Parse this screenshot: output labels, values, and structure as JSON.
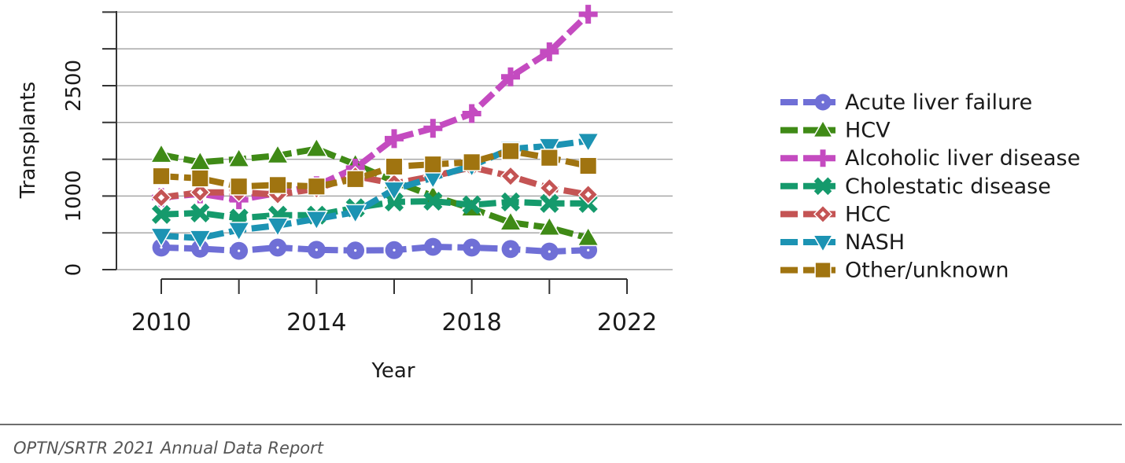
{
  "chart_data": {
    "type": "line",
    "xlabel": "Year",
    "ylabel": "Transplants",
    "xlim": [
      2010,
      2022
    ],
    "ylim": [
      0,
      3500
    ],
    "x_ticks": [
      2010,
      2014,
      2018,
      2022
    ],
    "y_ticks": [
      0,
      1000,
      2500
    ],
    "grid": true,
    "legend_position": "right",
    "x": [
      2010,
      2011,
      2012,
      2013,
      2014,
      2015,
      2016,
      2017,
      2018,
      2019,
      2020,
      2021
    ],
    "series": [
      {
        "name": "Acute liver failure",
        "color": "#6f6fd6",
        "marker": "circle",
        "values": [
          300,
          285,
          255,
          300,
          270,
          260,
          265,
          310,
          300,
          280,
          245,
          265
        ]
      },
      {
        "name": "HCV",
        "color": "#3f8a16",
        "marker": "triangle",
        "values": [
          1560,
          1460,
          1500,
          1550,
          1640,
          1430,
          1200,
          1000,
          830,
          640,
          570,
          430
        ]
      },
      {
        "name": "Alcoholic liver disease",
        "color": "#c44bc0",
        "marker": "plus",
        "values": [
          980,
          1030,
          950,
          1040,
          1140,
          1380,
          1780,
          1920,
          2120,
          2620,
          2960,
          3470
        ]
      },
      {
        "name": "Cholestatic disease",
        "color": "#159a6c",
        "marker": "x",
        "values": [
          750,
          770,
          700,
          740,
          740,
          840,
          920,
          930,
          880,
          920,
          900,
          900
        ]
      },
      {
        "name": "HCC",
        "color": "#c45454",
        "marker": "diamond",
        "values": [
          980,
          1050,
          1050,
          1020,
          1100,
          1270,
          1170,
          1270,
          1390,
          1270,
          1110,
          1020
        ]
      },
      {
        "name": "NASH",
        "color": "#1c93b3",
        "marker": "triangle-down",
        "values": [
          460,
          430,
          540,
          600,
          690,
          780,
          1090,
          1250,
          1410,
          1640,
          1680,
          1750
        ]
      },
      {
        "name": "Other/unknown",
        "color": "#a07410",
        "marker": "square",
        "values": [
          1270,
          1240,
          1130,
          1150,
          1130,
          1230,
          1400,
          1430,
          1460,
          1610,
          1520,
          1410
        ]
      }
    ]
  },
  "footer": {
    "source": "OPTN/SRTR 2021 Annual Data Report"
  }
}
